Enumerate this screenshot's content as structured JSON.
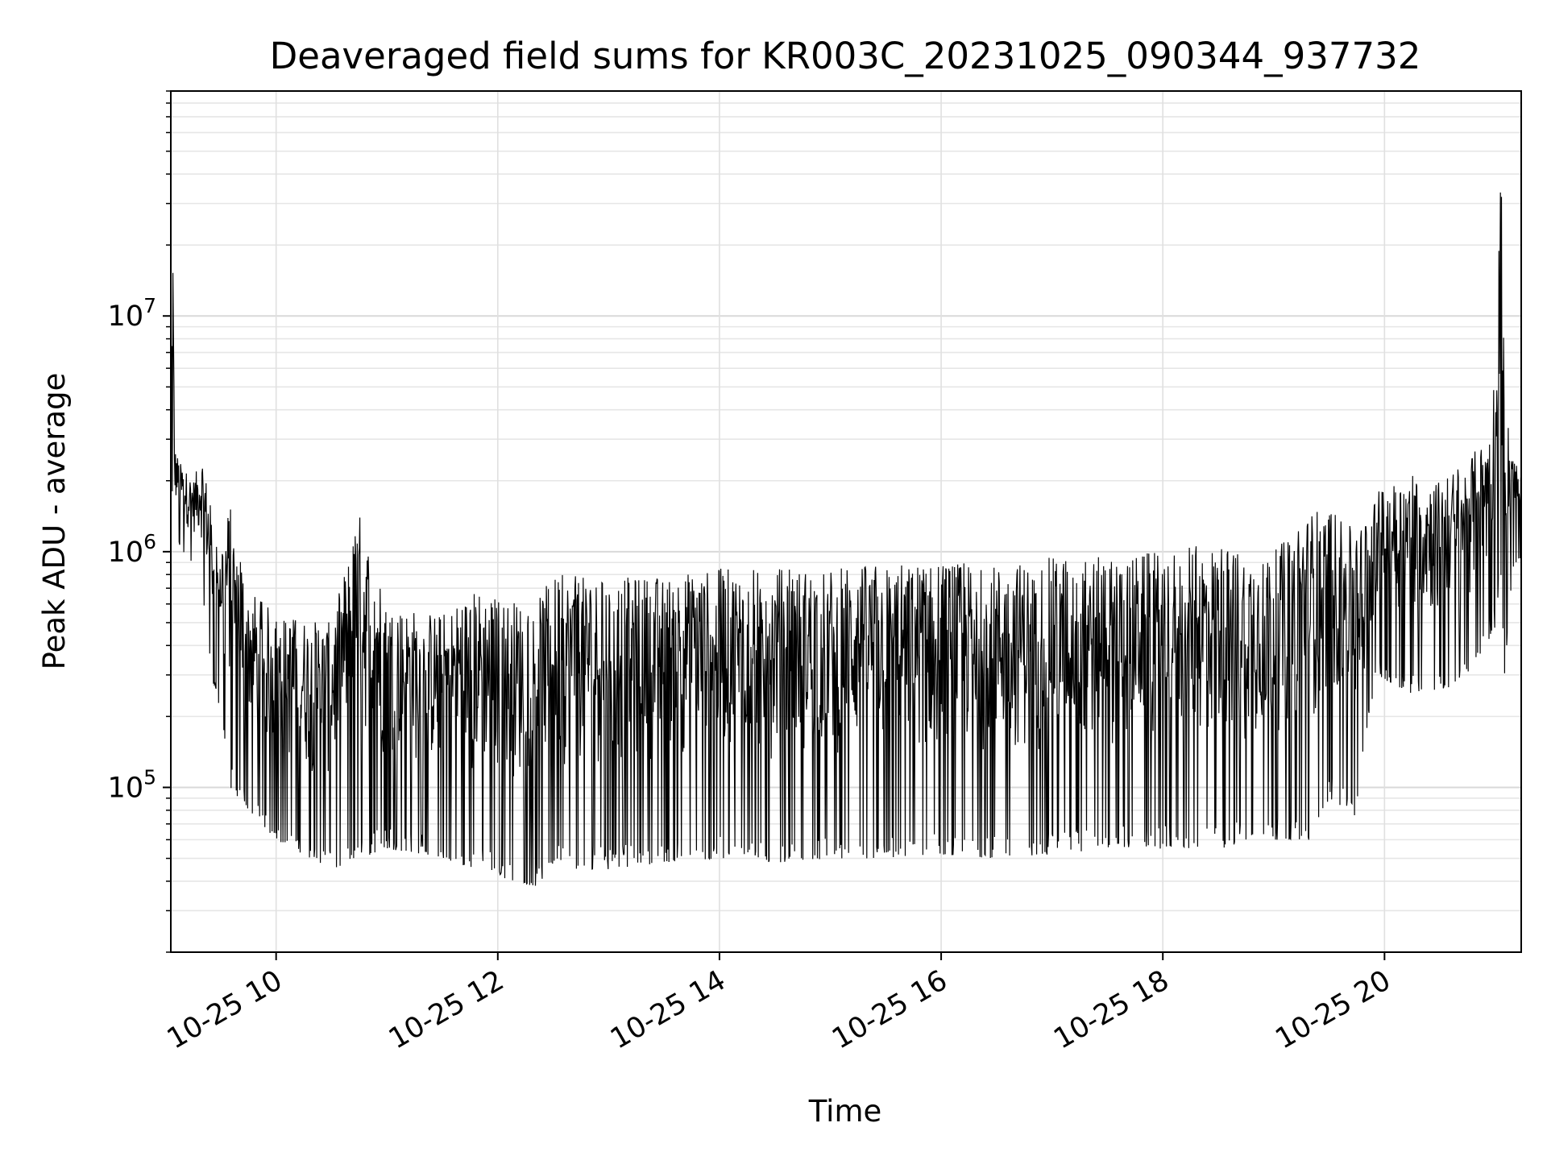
{
  "chart_data": {
    "type": "line",
    "title": "Deaveraged field sums for KR003C_20231025_090344_937732",
    "xlabel": "Time",
    "ylabel": "Peak ADU - average",
    "yscale": "log",
    "grid": true,
    "legend": "none",
    "line_color": "#000000",
    "xlim": [
      "2023-10-25 09:03",
      "2023-10-25 21:14"
    ],
    "ylim": [
      20000,
      90000000
    ],
    "x_ticks": [
      {
        "value": "2023-10-25 10:00",
        "label": "10-25 10"
      },
      {
        "value": "2023-10-25 12:00",
        "label": "10-25 12"
      },
      {
        "value": "2023-10-25 14:00",
        "label": "10-25 14"
      },
      {
        "value": "2023-10-25 16:00",
        "label": "10-25 16"
      },
      {
        "value": "2023-10-25 18:00",
        "label": "10-25 18"
      },
      {
        "value": "2023-10-25 20:00",
        "label": "10-25 20"
      }
    ],
    "y_ticks": [
      {
        "value": 100000,
        "base": "10",
        "exp": "5"
      },
      {
        "value": 1000000,
        "base": "10",
        "exp": "6"
      },
      {
        "value": 10000000,
        "base": "10",
        "exp": "7"
      }
    ],
    "series": [
      {
        "x": [
          "2023-10-25 09:03",
          "2023-10-25 09:04",
          "2023-10-25 09:05",
          "2023-10-25 09:08",
          "2023-10-25 09:15",
          "2023-10-25 09:20",
          "2023-10-25 09:25",
          "2023-10-25 09:30",
          "2023-10-25 09:35",
          "2023-10-25 09:45",
          "2023-10-25 10:00",
          "2023-10-25 10:30",
          "2023-10-25 10:45",
          "2023-10-25 11:00",
          "2023-10-25 11:30",
          "2023-10-25 11:48",
          "2023-10-25 12:00",
          "2023-10-25 12:20",
          "2023-10-25 12:30",
          "2023-10-25 13:00",
          "2023-10-25 13:30",
          "2023-10-25 14:00",
          "2023-10-25 14:30",
          "2023-10-25 15:00",
          "2023-10-25 15:30",
          "2023-10-25 16:00",
          "2023-10-25 16:30",
          "2023-10-25 17:00",
          "2023-10-25 17:30",
          "2023-10-25 18:00",
          "2023-10-25 18:30",
          "2023-10-25 19:00",
          "2023-10-25 19:20",
          "2023-10-25 19:30",
          "2023-10-25 19:45",
          "2023-10-25 19:55",
          "2023-10-25 20:15",
          "2023-10-25 20:30",
          "2023-10-25 20:45",
          "2023-10-25 20:55",
          "2023-10-25 21:01",
          "2023-10-25 21:02",
          "2023-10-25 21:03",
          "2023-10-25 21:05",
          "2023-10-25 21:10",
          "2023-10-25 21:14"
        ],
        "high": [
          2500000,
          30000000,
          2800000,
          2400000,
          2000000,
          2600000,
          1500000,
          1200000,
          1600000,
          700000,
          550000,
          500000,
          1500000,
          600000,
          550000,
          700000,
          650000,
          600000,
          800000,
          780000,
          800000,
          850000,
          860000,
          850000,
          900000,
          900000,
          880000,
          950000,
          950000,
          1000000,
          1100000,
          1000000,
          1500000,
          1600000,
          1200000,
          1800000,
          2200000,
          2000000,
          2500000,
          3000000,
          7000000,
          60000000,
          50000000,
          4500000,
          2500000,
          2200000
        ],
        "low": [
          1400000,
          1500000,
          1200000,
          1000000,
          900000,
          700000,
          300000,
          200000,
          100000,
          80000,
          60000,
          45000,
          50000,
          55000,
          50000,
          45000,
          42000,
          38000,
          45000,
          45000,
          48000,
          50000,
          48000,
          50000,
          50000,
          52000,
          50000,
          52000,
          55000,
          55000,
          55000,
          60000,
          60000,
          90000,
          75000,
          300000,
          250000,
          250000,
          300000,
          400000,
          500000,
          1000000,
          800000,
          300000,
          900000,
          900000
        ]
      }
    ]
  }
}
